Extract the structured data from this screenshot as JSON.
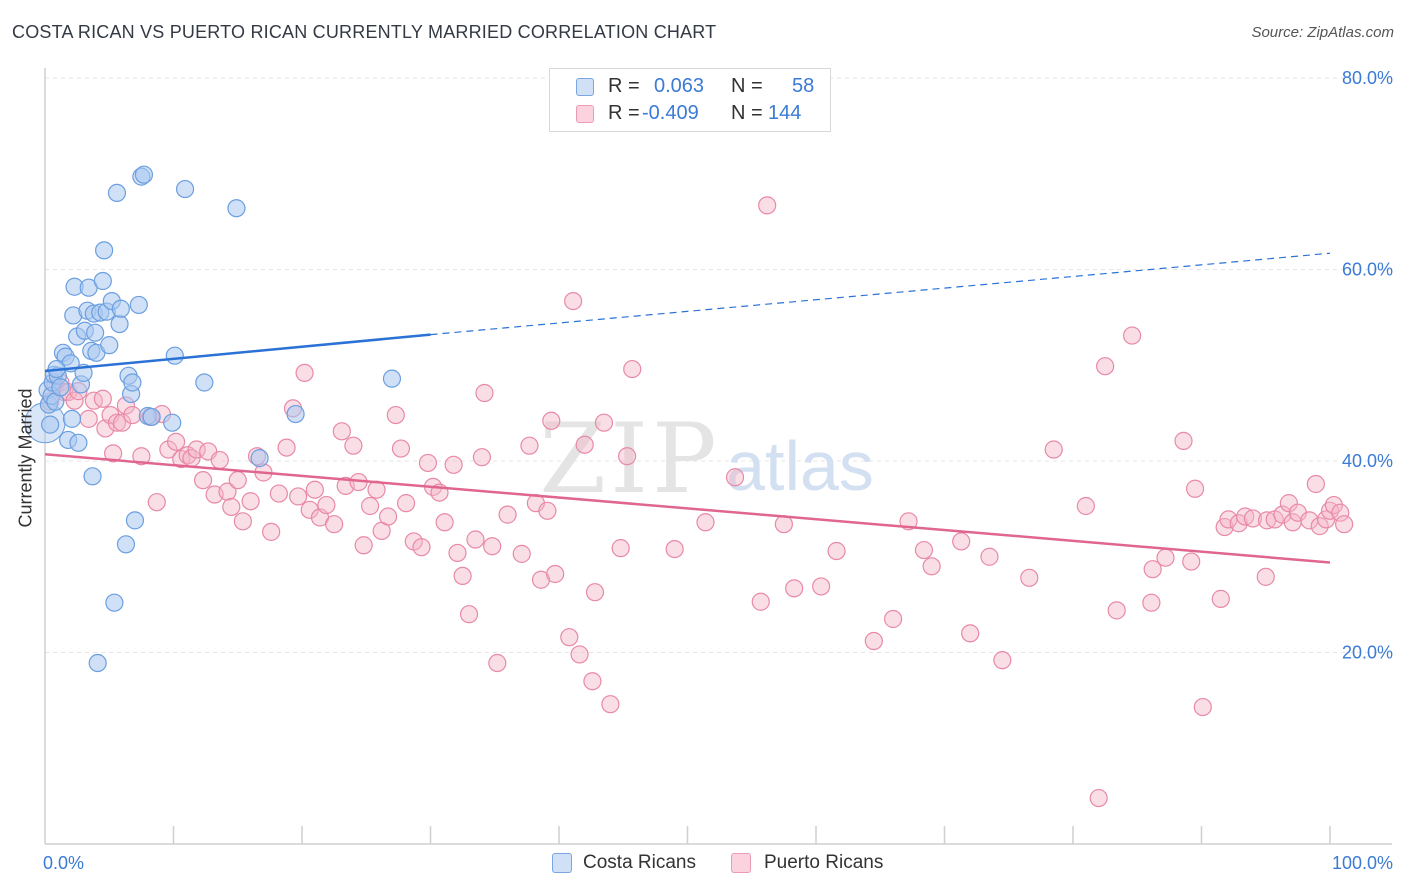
{
  "title": "COSTA RICAN VS PUERTO RICAN CURRENTLY MARRIED CORRELATION CHART",
  "source": "Source: ZipAtlas.com",
  "watermark": {
    "zip": "ZIP",
    "atlas": "atlas"
  },
  "legend": {
    "rows": [
      {
        "r_label": "R =",
        "r_value": "0.063",
        "n_label": "N =",
        "n_value": "58",
        "color": "#a9c8f0"
      },
      {
        "r_label": "R =",
        "r_value": "-0.409",
        "n_label": "N =",
        "n_value": "144",
        "color": "#f5b5c8"
      }
    ]
  },
  "bottom_legend": [
    {
      "label": "Costa Ricans",
      "color": "#a9c8f0"
    },
    {
      "label": "Puerto Ricans",
      "color": "#f5b5c8"
    }
  ],
  "colors": {
    "blue_fill": "#a9c8f0",
    "blue_stroke": "#6b9fe0",
    "blue_line": "#2b72d6",
    "pink_fill": "#f5b5c8",
    "pink_stroke": "#e889a8",
    "pink_line": "#e0668f",
    "axis_label": "#3a7bd5",
    "grid": "#e6e6e6"
  },
  "chart_data": {
    "type": "scatter",
    "title": "COSTA RICAN VS PUERTO RICAN CURRENTLY MARRIED CORRELATION CHART",
    "xlabel": "",
    "ylabel": "Currently Married",
    "xlim": [
      0,
      100
    ],
    "ylim": [
      0,
      80
    ],
    "x_tick_labels": [
      "0.0%",
      "100.0%"
    ],
    "y_tick_labels": [
      "20.0%",
      "40.0%",
      "60.0%",
      "80.0%"
    ],
    "y_ticks": [
      20,
      40,
      60,
      80
    ],
    "grid": true,
    "legend_position": "top-center",
    "series": [
      {
        "name": "Costa Ricans",
        "r": 0.063,
        "n": 58,
        "trend": {
          "x0": 0,
          "y0": 49.4,
          "x1": 30,
          "y1": 53.2,
          "dashed_to_x": 100,
          "dashed_to_y": 61.7
        },
        "points": [
          [
            0.2,
            47.4
          ],
          [
            0.3,
            45.9
          ],
          [
            0.4,
            43.8
          ],
          [
            0.5,
            46.8
          ],
          [
            0.6,
            48.2
          ],
          [
            0.7,
            49.0
          ],
          [
            0.8,
            46.2
          ],
          [
            1.0,
            48.9
          ],
          [
            1.2,
            47.7
          ],
          [
            1.4,
            51.3
          ],
          [
            1.6,
            50.9
          ],
          [
            1.8,
            42.2
          ],
          [
            2.0,
            50.2
          ],
          [
            2.1,
            44.4
          ],
          [
            2.2,
            55.2
          ],
          [
            2.3,
            58.2
          ],
          [
            2.5,
            53.0
          ],
          [
            2.6,
            41.9
          ],
          [
            2.8,
            48.0
          ],
          [
            3.0,
            49.2
          ],
          [
            3.1,
            53.6
          ],
          [
            3.3,
            55.7
          ],
          [
            3.4,
            58.1
          ],
          [
            3.6,
            51.5
          ],
          [
            3.7,
            38.4
          ],
          [
            3.8,
            55.4
          ],
          [
            3.9,
            53.4
          ],
          [
            4.0,
            51.3
          ],
          [
            4.1,
            18.9
          ],
          [
            4.3,
            55.5
          ],
          [
            4.5,
            58.8
          ],
          [
            4.6,
            62.0
          ],
          [
            4.8,
            55.6
          ],
          [
            5.0,
            52.1
          ],
          [
            5.2,
            56.7
          ],
          [
            5.4,
            25.2
          ],
          [
            5.6,
            68.0
          ],
          [
            5.8,
            54.3
          ],
          [
            5.9,
            55.9
          ],
          [
            6.3,
            31.3
          ],
          [
            6.5,
            48.9
          ],
          [
            6.7,
            47.0
          ],
          [
            6.8,
            48.2
          ],
          [
            7.0,
            33.8
          ],
          [
            7.3,
            56.3
          ],
          [
            7.5,
            69.7
          ],
          [
            7.7,
            69.9
          ],
          [
            8.0,
            44.7
          ],
          [
            8.3,
            44.6
          ],
          [
            9.9,
            44.0
          ],
          [
            10.1,
            51.0
          ],
          [
            10.9,
            68.4
          ],
          [
            12.4,
            48.2
          ],
          [
            14.9,
            66.4
          ],
          [
            16.7,
            40.3
          ],
          [
            19.5,
            44.9
          ],
          [
            27.0,
            48.6
          ],
          [
            0.9,
            49.6
          ]
        ]
      },
      {
        "name": "Puerto Ricans",
        "r": -0.409,
        "n": 144,
        "trend": {
          "x0": 0,
          "y0": 40.7,
          "x1": 100,
          "y1": 29.4
        },
        "points": [
          [
            0.4,
            46.2
          ],
          [
            0.8,
            47.9
          ],
          [
            1.2,
            48.2
          ],
          [
            1.5,
            47.2
          ],
          [
            1.8,
            47.2
          ],
          [
            2.3,
            46.3
          ],
          [
            2.6,
            47.3
          ],
          [
            3.4,
            44.4
          ],
          [
            3.8,
            46.3
          ],
          [
            4.5,
            46.5
          ],
          [
            4.7,
            43.4
          ],
          [
            5.1,
            44.8
          ],
          [
            5.3,
            40.8
          ],
          [
            5.6,
            44.0
          ],
          [
            6.0,
            44.0
          ],
          [
            6.3,
            45.8
          ],
          [
            6.8,
            44.8
          ],
          [
            7.5,
            40.5
          ],
          [
            8.2,
            44.6
          ],
          [
            8.7,
            35.7
          ],
          [
            9.1,
            44.9
          ],
          [
            9.6,
            41.2
          ],
          [
            10.2,
            42.0
          ],
          [
            10.6,
            40.2
          ],
          [
            11.1,
            40.6
          ],
          [
            11.4,
            40.3
          ],
          [
            11.8,
            41.2
          ],
          [
            12.3,
            38.0
          ],
          [
            12.7,
            41.0
          ],
          [
            13.2,
            36.5
          ],
          [
            13.6,
            40.1
          ],
          [
            14.2,
            36.8
          ],
          [
            14.5,
            35.2
          ],
          [
            15.0,
            38.0
          ],
          [
            15.4,
            33.7
          ],
          [
            16.0,
            35.8
          ],
          [
            16.5,
            40.5
          ],
          [
            17.0,
            38.8
          ],
          [
            17.6,
            32.6
          ],
          [
            18.2,
            36.6
          ],
          [
            18.8,
            41.4
          ],
          [
            19.3,
            45.5
          ],
          [
            19.7,
            36.3
          ],
          [
            20.2,
            49.2
          ],
          [
            20.6,
            34.9
          ],
          [
            21.0,
            37.0
          ],
          [
            21.4,
            34.1
          ],
          [
            21.9,
            35.4
          ],
          [
            22.5,
            33.4
          ],
          [
            23.1,
            43.1
          ],
          [
            23.4,
            37.4
          ],
          [
            24.0,
            41.6
          ],
          [
            24.4,
            37.8
          ],
          [
            24.8,
            31.2
          ],
          [
            25.3,
            35.3
          ],
          [
            25.8,
            37.0
          ],
          [
            26.2,
            32.7
          ],
          [
            26.7,
            34.2
          ],
          [
            27.3,
            44.8
          ],
          [
            27.7,
            41.3
          ],
          [
            28.1,
            35.6
          ],
          [
            28.7,
            31.6
          ],
          [
            29.3,
            31.0
          ],
          [
            29.8,
            39.8
          ],
          [
            30.2,
            37.3
          ],
          [
            30.7,
            36.7
          ],
          [
            31.1,
            33.6
          ],
          [
            31.8,
            39.6
          ],
          [
            32.1,
            30.4
          ],
          [
            32.5,
            28.0
          ],
          [
            33.0,
            24.0
          ],
          [
            33.5,
            31.8
          ],
          [
            34.0,
            40.4
          ],
          [
            34.2,
            47.1
          ],
          [
            34.8,
            31.1
          ],
          [
            35.2,
            18.9
          ],
          [
            36.0,
            34.4
          ],
          [
            37.1,
            30.3
          ],
          [
            37.7,
            41.6
          ],
          [
            38.2,
            35.6
          ],
          [
            38.6,
            27.6
          ],
          [
            39.1,
            34.8
          ],
          [
            39.4,
            44.2
          ],
          [
            39.7,
            28.2
          ],
          [
            40.8,
            21.6
          ],
          [
            41.1,
            56.7
          ],
          [
            41.6,
            19.8
          ],
          [
            42.0,
            41.7
          ],
          [
            42.6,
            17.0
          ],
          [
            42.8,
            26.3
          ],
          [
            43.5,
            44.0
          ],
          [
            44.0,
            14.6
          ],
          [
            44.8,
            30.9
          ],
          [
            45.3,
            40.5
          ],
          [
            45.7,
            49.6
          ],
          [
            49.0,
            30.8
          ],
          [
            51.4,
            33.6
          ],
          [
            53.7,
            38.3
          ],
          [
            55.7,
            25.3
          ],
          [
            56.2,
            66.7
          ],
          [
            57.5,
            33.4
          ],
          [
            58.3,
            26.7
          ],
          [
            60.4,
            26.9
          ],
          [
            61.6,
            30.6
          ],
          [
            64.5,
            21.2
          ],
          [
            66.0,
            23.5
          ],
          [
            67.2,
            33.7
          ],
          [
            68.4,
            30.7
          ],
          [
            69.0,
            29.0
          ],
          [
            71.3,
            31.6
          ],
          [
            72.0,
            22.0
          ],
          [
            73.5,
            30.0
          ],
          [
            74.5,
            19.2
          ],
          [
            76.6,
            27.8
          ],
          [
            78.5,
            41.2
          ],
          [
            81.0,
            35.3
          ],
          [
            82.0,
            4.8
          ],
          [
            82.5,
            49.9
          ],
          [
            83.4,
            24.4
          ],
          [
            84.6,
            53.1
          ],
          [
            86.1,
            25.2
          ],
          [
            86.2,
            28.7
          ],
          [
            87.2,
            29.9
          ],
          [
            88.6,
            42.1
          ],
          [
            89.2,
            29.5
          ],
          [
            89.5,
            37.1
          ],
          [
            90.1,
            14.3
          ],
          [
            91.5,
            25.6
          ],
          [
            91.8,
            33.1
          ],
          [
            92.1,
            33.9
          ],
          [
            92.9,
            33.5
          ],
          [
            93.4,
            34.2
          ],
          [
            94.0,
            34.0
          ],
          [
            95.0,
            27.9
          ],
          [
            95.1,
            33.8
          ],
          [
            95.7,
            33.9
          ],
          [
            96.3,
            34.4
          ],
          [
            96.8,
            35.6
          ],
          [
            97.1,
            33.6
          ],
          [
            97.5,
            34.6
          ],
          [
            98.4,
            33.8
          ],
          [
            98.9,
            37.6
          ],
          [
            99.2,
            33.2
          ],
          [
            99.7,
            33.9
          ],
          [
            100.0,
            34.8
          ],
          [
            100.3,
            35.4
          ],
          [
            100.8,
            34.6
          ],
          [
            101.1,
            33.4
          ]
        ]
      }
    ]
  }
}
